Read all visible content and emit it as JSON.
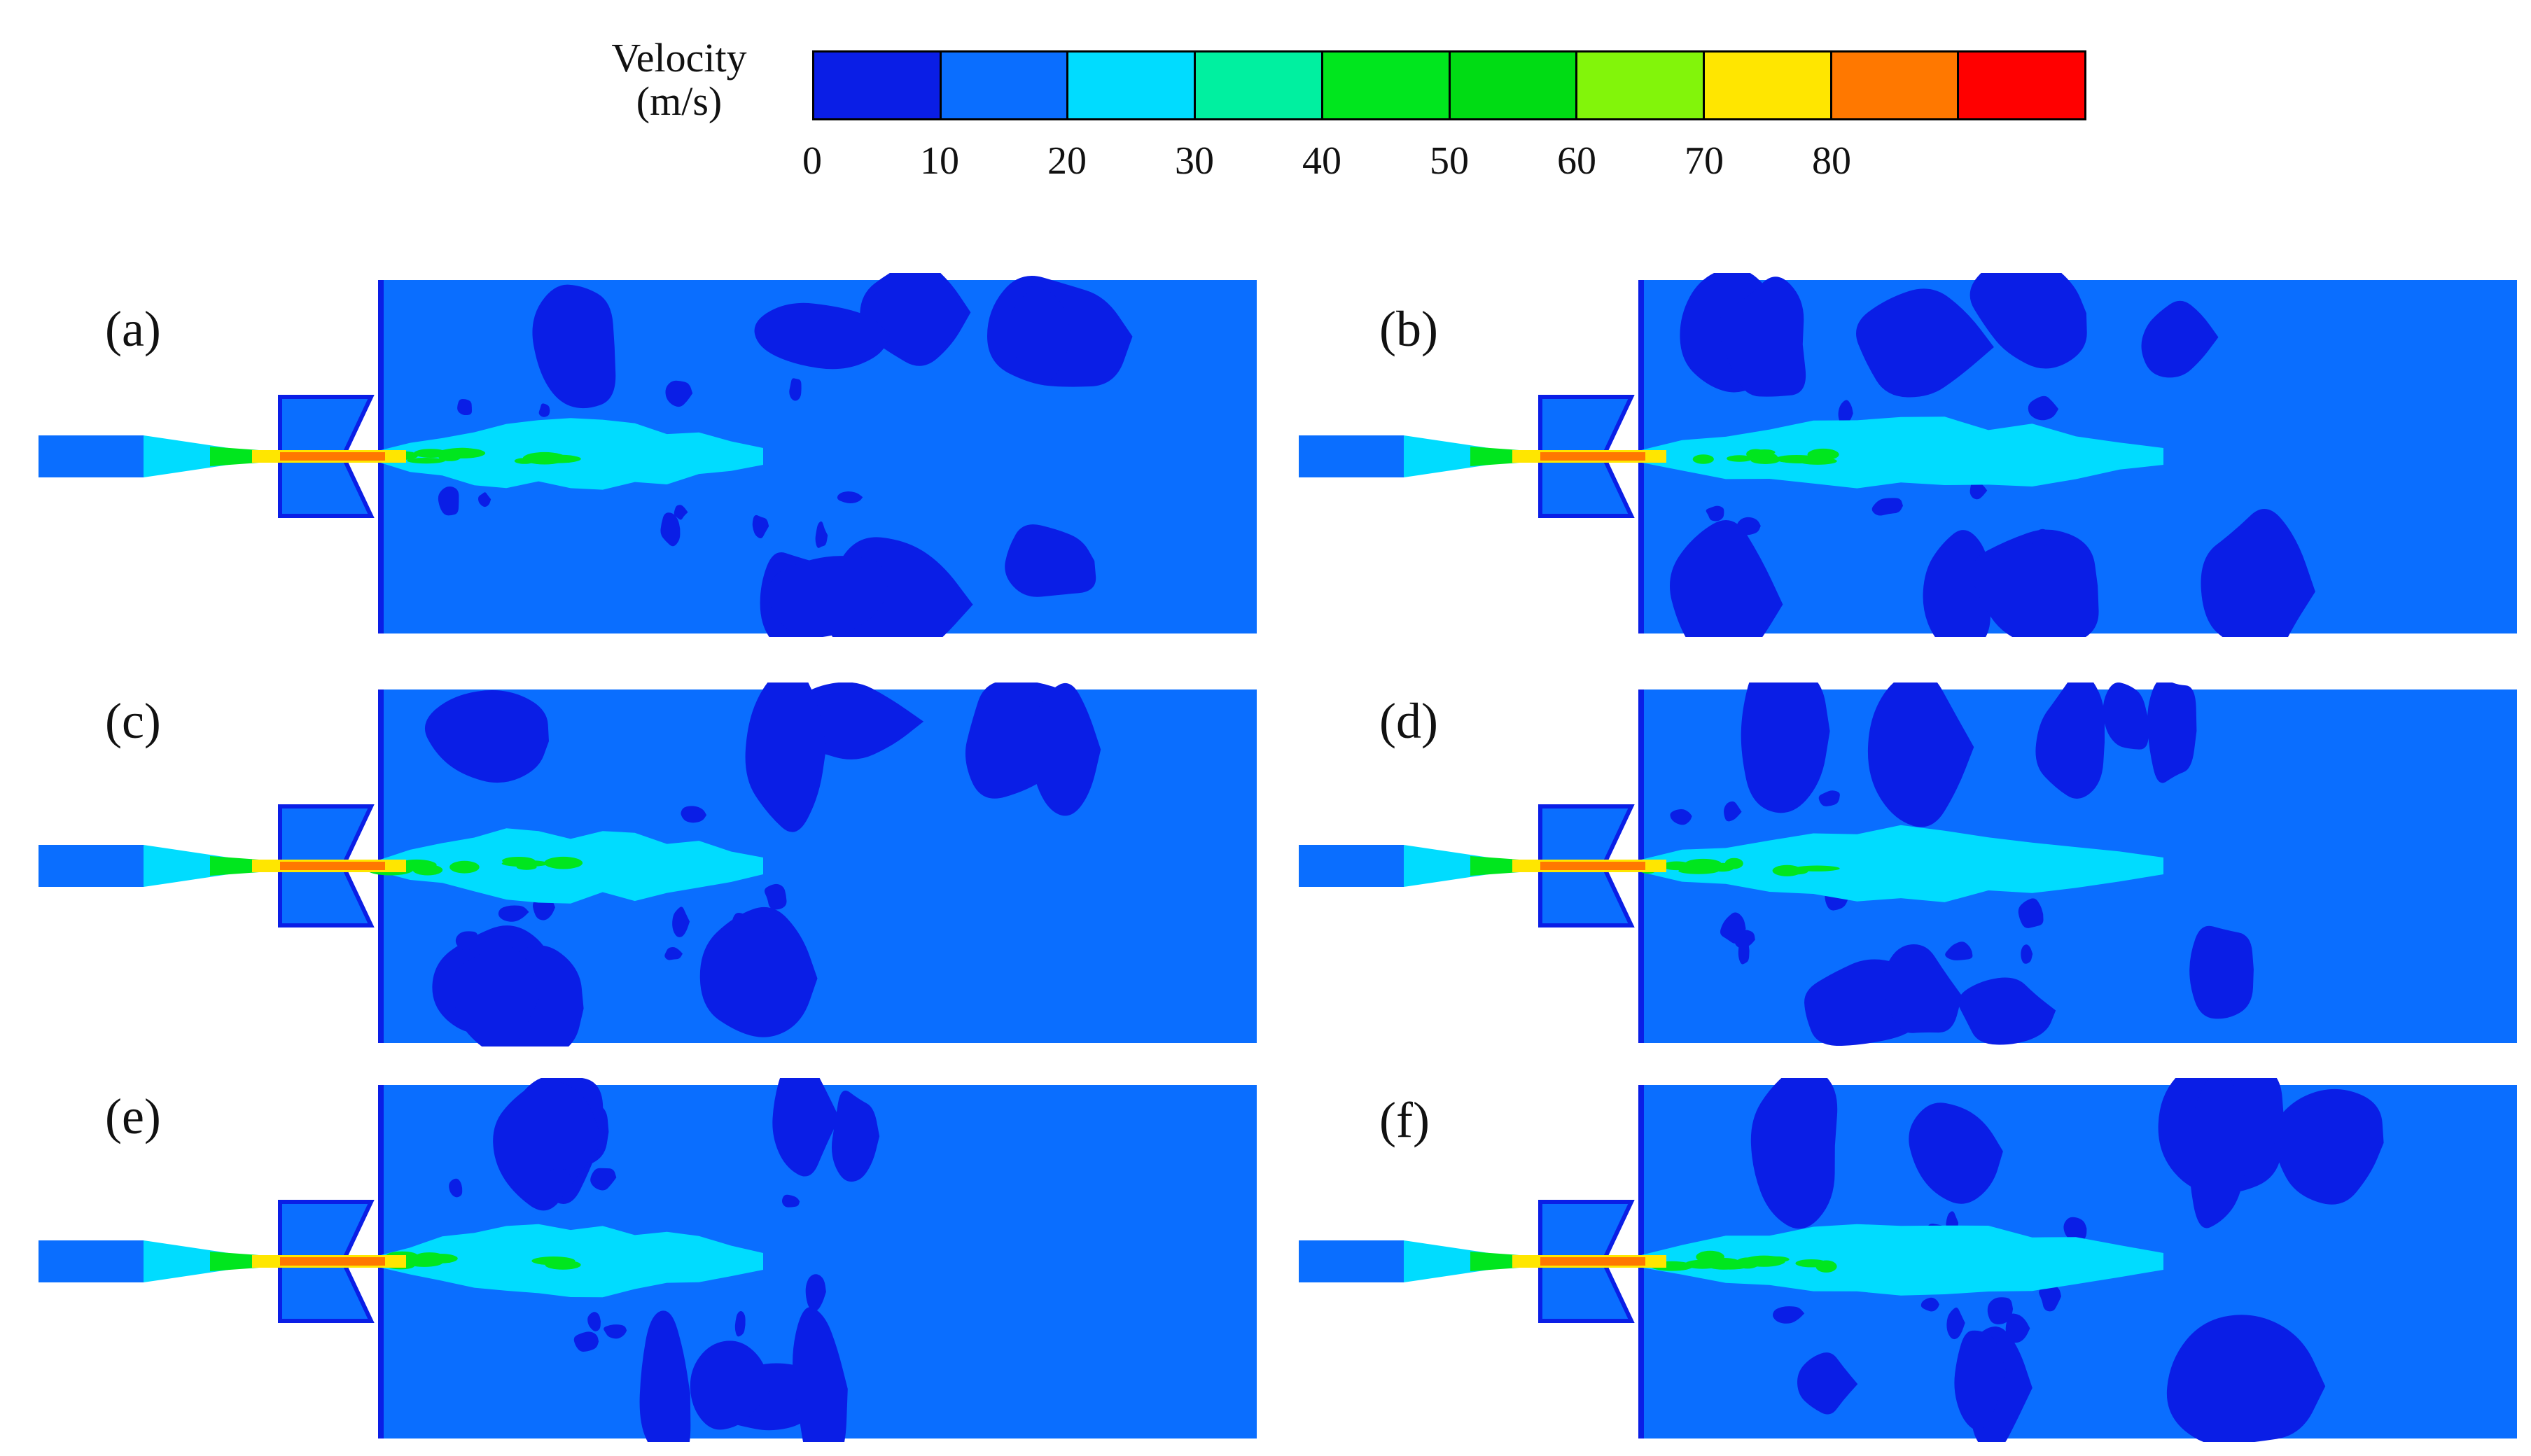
{
  "legend": {
    "title_line1": "Velocity",
    "title_line2": "(m/s)",
    "colors": [
      "#0a1ee6",
      "#0a6eff",
      "#00dcff",
      "#00f0a0",
      "#00e61e",
      "#00dc14",
      "#82f50a",
      "#ffe600",
      "#ff7800",
      "#ff0000"
    ],
    "ticks": [
      "0",
      "10",
      "20",
      "30",
      "40",
      "50",
      "60",
      "70",
      "80"
    ]
  },
  "panels": [
    {
      "label": "(a)",
      "variant": 0
    },
    {
      "label": "(b)",
      "variant": 1
    },
    {
      "label": "(c)",
      "variant": 2
    },
    {
      "label": "(d)",
      "variant": 3
    },
    {
      "label": "(e)",
      "variant": 4
    },
    {
      "label": "(f)",
      "variant": 5
    }
  ],
  "colors": {
    "background_flow": "#0a6eff",
    "low_velocity": "#0a1ee6",
    "jet_mid": "#00dcff",
    "jet_high": "#00e61e",
    "jet_core": "#ffe600",
    "jet_peak": "#ff7800"
  }
}
